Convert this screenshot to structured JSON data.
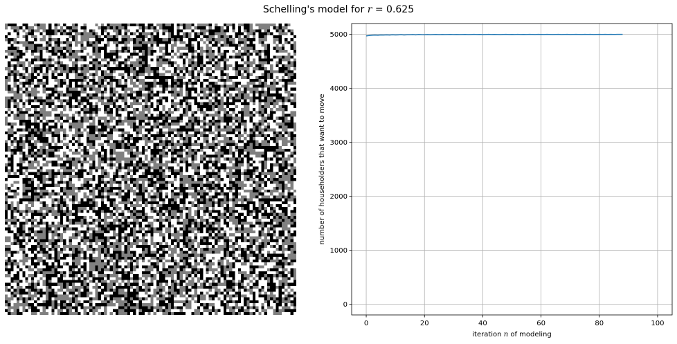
{
  "figure": {
    "title_prefix": "Schelling's model for ",
    "title_math_var": "r",
    "title_math_rest": " = 0.625"
  },
  "chart_data": [
    {
      "type": "heatmap",
      "description": "100x100 grid of three cell states (black, grey, white)",
      "rows": 100,
      "cols": 100,
      "palette": {
        "black": "#000000",
        "grey": "#808080",
        "white": "#ffffff"
      },
      "state_shares": {
        "black": 0.34,
        "grey": 0.33,
        "white": 0.33
      },
      "axes_visible": false
    },
    {
      "type": "line",
      "title": "",
      "xlabel_prefix": "iteration ",
      "xlabel_var": "n",
      "xlabel_suffix": " of modeling",
      "ylabel": "number of householders that want to move",
      "xlim": [
        -5,
        105
      ],
      "ylim": [
        -200,
        5200
      ],
      "xticks": [
        0,
        20,
        40,
        60,
        80,
        100
      ],
      "yticks": [
        0,
        1000,
        2000,
        3000,
        4000,
        5000
      ],
      "grid": true,
      "line_color": "#1f77b4",
      "series": [
        {
          "x": [
            0,
            1,
            2,
            3,
            4,
            5,
            6,
            7,
            8,
            9,
            10,
            11,
            12,
            13,
            14,
            15,
            16,
            17,
            18,
            19,
            20,
            21,
            22,
            23,
            24,
            25,
            26,
            27,
            28,
            29,
            30,
            31,
            32,
            33,
            34,
            35,
            36,
            37,
            38,
            39,
            40,
            41,
            42,
            43,
            44,
            45,
            46,
            47,
            48,
            49,
            50,
            51,
            52,
            53,
            54,
            55,
            56,
            57,
            58,
            59,
            60,
            61,
            62,
            63,
            64,
            65,
            66,
            67,
            68,
            69,
            70,
            71,
            72,
            73,
            74,
            75,
            76,
            77,
            78,
            79,
            80,
            81,
            82,
            83,
            84,
            85,
            86,
            87,
            88
          ],
          "values": [
            4970,
            4978,
            4984,
            4986,
            4983,
            4989,
            4987,
            4990,
            4986,
            4992,
            4988,
            4990,
            4993,
            4989,
            4992,
            4991,
            4994,
            4990,
            4996,
            4993,
            4992,
            4995,
            4991,
            4994,
            4996,
            4993,
            4997,
            4994,
            4996,
            4998,
            4995,
            4997,
            4994,
            4996,
            4998,
            4995,
            4997,
            4999,
            4996,
            4998,
            4995,
            4997,
            4999,
            4996,
            4998,
            4997,
            4995,
            4998,
            4999,
            4996,
            4998,
            4997,
            4999,
            4996,
            4998,
            4997,
            4999,
            4998,
            4996,
            4999,
            4998,
            4997,
            4999,
            4998,
            4996,
            4998,
            4999,
            4997,
            4998,
            4999,
            4997,
            4998,
            4999,
            4998,
            4997,
            4999,
            4998,
            4999,
            4997,
            4998,
            4999,
            4998,
            4999,
            4998,
            4999,
            4998,
            4999,
            4999,
            4999
          ]
        }
      ]
    }
  ]
}
